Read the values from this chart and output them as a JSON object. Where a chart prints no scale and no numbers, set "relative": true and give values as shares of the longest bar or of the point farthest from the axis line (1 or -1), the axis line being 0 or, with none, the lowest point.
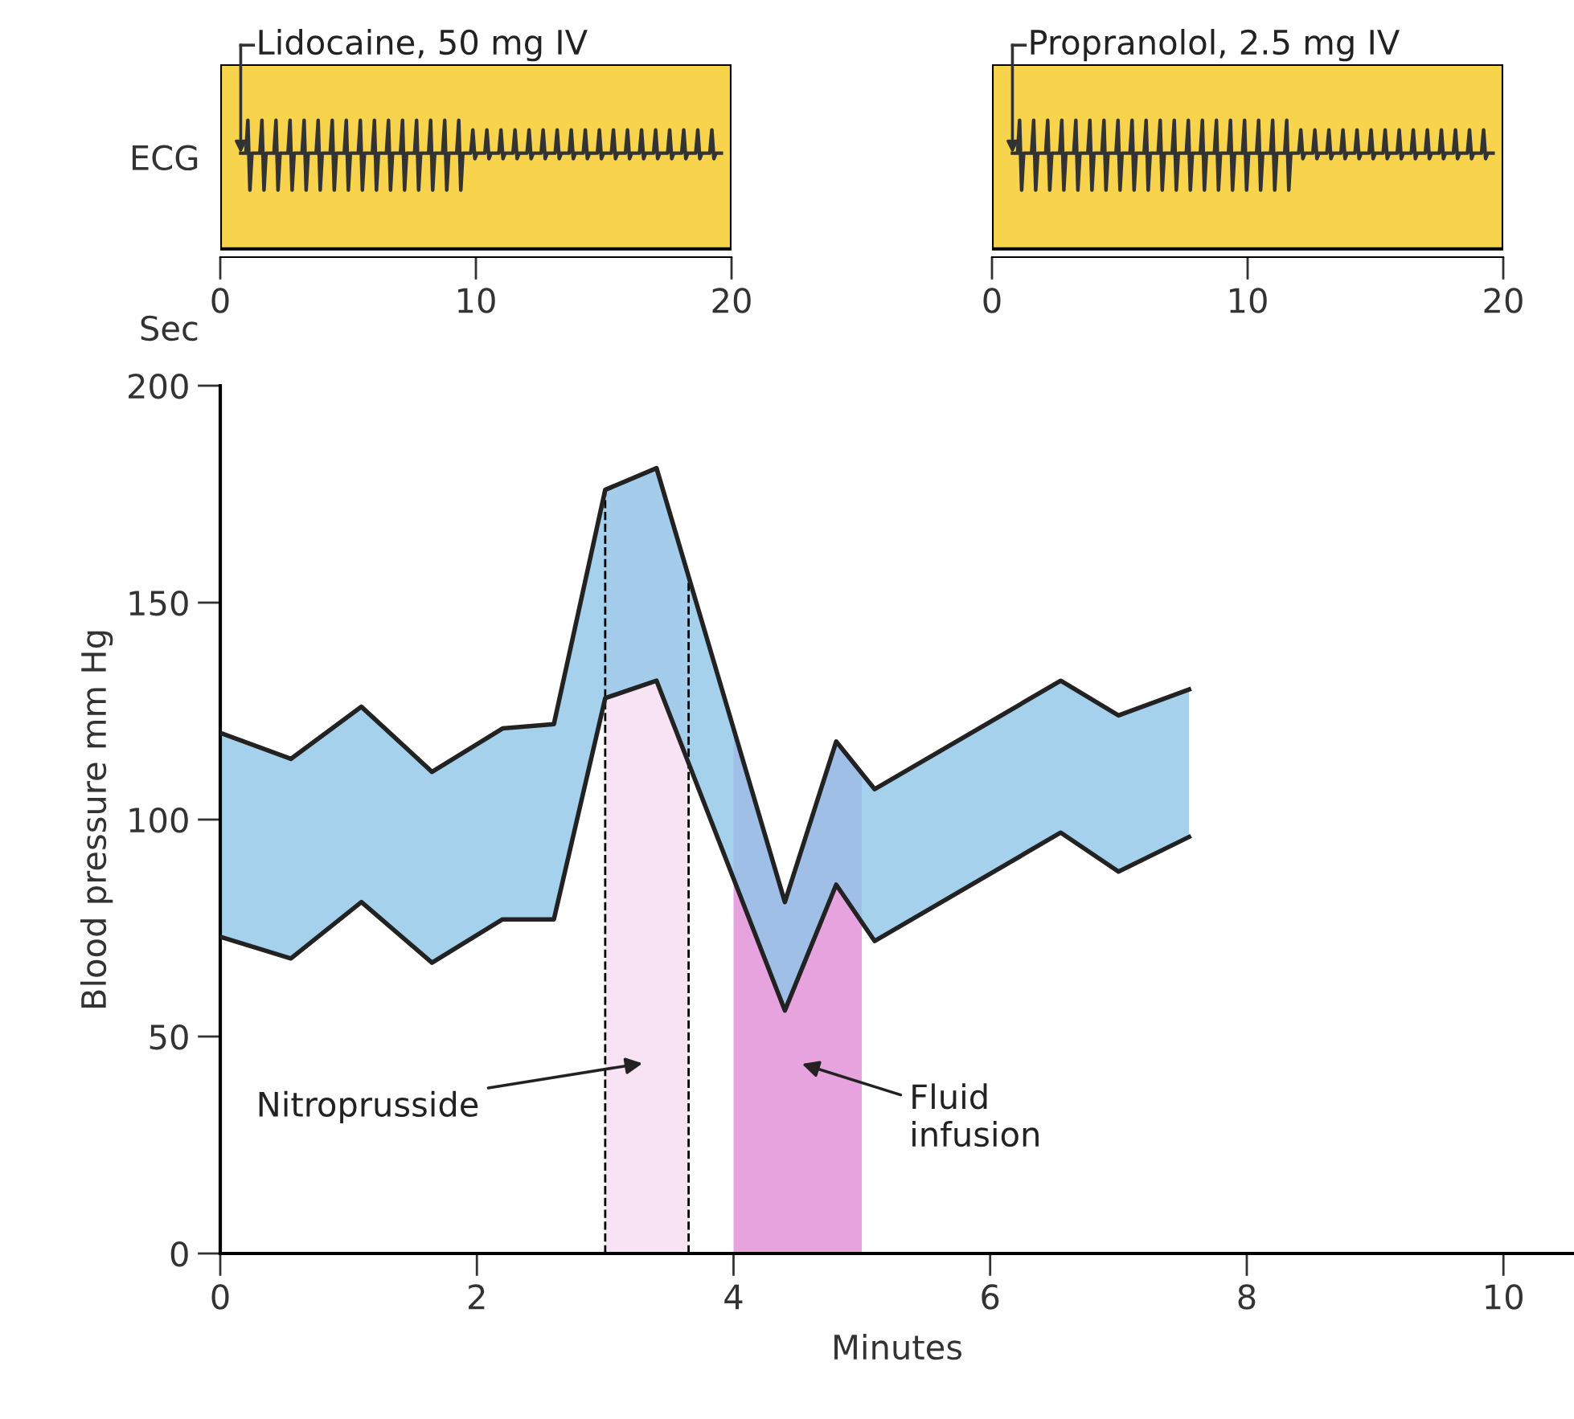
{
  "chart_data": [
    {
      "type": "line",
      "relative": true,
      "xlabel": "Sec",
      "ylabel": "ECG",
      "xlim": [
        0,
        20
      ],
      "xticks": [
        0,
        10,
        20
      ],
      "annotations": [
        {
          "text": "Lidocaine, 50 mg IV",
          "x": 0.8,
          "y": 0.76
        }
      ],
      "series": [
        {
          "color": "#333333",
          "x": [
            0.8,
            1.0,
            1.08,
            1.16,
            1.24,
            1.55,
            1.63,
            1.71,
            1.79,
            2.1,
            2.18,
            2.26,
            2.34,
            2.65,
            2.73,
            2.81,
            2.89,
            3.2,
            3.28,
            3.36,
            3.44,
            3.75,
            3.83,
            3.91,
            3.99,
            4.3,
            4.38,
            4.46,
            4.54,
            4.85,
            4.93,
            5.01,
            5.09,
            5.4,
            5.48,
            5.56,
            5.64,
            5.95,
            6.03,
            6.11,
            6.19,
            6.5,
            6.58,
            6.66,
            6.74,
            7.05,
            7.13,
            7.21,
            7.29,
            7.6,
            7.68,
            7.76,
            7.84,
            8.15,
            8.23,
            8.31,
            8.39,
            8.7,
            8.78,
            8.86,
            8.94,
            9.25,
            9.33,
            9.41,
            9.49,
            9.8,
            9.88,
            9.96,
            10.04,
            10.35,
            10.43,
            10.51,
            10.59,
            10.9,
            10.98,
            11.06,
            11.14,
            11.45,
            11.53,
            11.61,
            11.69,
            12.0,
            12.08,
            12.16,
            12.24,
            12.55,
            12.63,
            12.71,
            12.79,
            13.1,
            13.18,
            13.26,
            13.34,
            13.65,
            13.73,
            13.81,
            13.89,
            14.2,
            14.28,
            14.36,
            14.44,
            14.75,
            14.83,
            14.91,
            14.99,
            15.3,
            15.38,
            15.46,
            15.54,
            15.85,
            15.93,
            16.01,
            16.09,
            16.4,
            16.48,
            16.56,
            16.64,
            16.95,
            17.03,
            17.11,
            17.19,
            17.5,
            17.58,
            17.66,
            17.74,
            18.05,
            18.13,
            18.21,
            18.29,
            18.6,
            18.68,
            18.76,
            18.84,
            19.15,
            19.23,
            19.31,
            19.39,
            19.6
          ],
          "values": [
            0.76,
            0.76,
            1,
            0.49,
            0.76,
            0.76,
            1,
            0.49,
            0.76,
            0.76,
            1,
            0.49,
            0.76,
            0.76,
            1,
            0.49,
            0.76,
            0.76,
            1,
            0.49,
            0.76,
            0.76,
            1,
            0.49,
            0.76,
            0.76,
            1,
            0.49,
            0.76,
            0.76,
            1,
            0.49,
            0.76,
            0.76,
            1,
            0.49,
            0.76,
            0.76,
            1,
            0.49,
            0.76,
            0.76,
            1,
            0.49,
            0.76,
            0.76,
            1,
            0.49,
            0.76,
            0.76,
            1,
            0.49,
            0.76,
            0.76,
            1,
            0.49,
            0.76,
            0.76,
            1,
            0.49,
            0.76,
            0.76,
            1,
            0.49,
            0.76,
            0.76,
            0.93,
            0.72,
            0.76,
            0.76,
            0.93,
            0.72,
            0.76,
            0.76,
            0.93,
            0.72,
            0.76,
            0.76,
            0.93,
            0.72,
            0.76,
            0.76,
            0.93,
            0.72,
            0.76,
            0.76,
            0.93,
            0.72,
            0.76,
            0.76,
            0.93,
            0.72,
            0.76,
            0.76,
            0.93,
            0.72,
            0.76,
            0.76,
            0.93,
            0.72,
            0.76,
            0.76,
            0.93,
            0.72,
            0.76,
            0.76,
            0.93,
            0.72,
            0.76,
            0.76,
            0.93,
            0.72,
            0.76,
            0.76,
            0.93,
            0.72,
            0.76,
            0.76,
            0.93,
            0.72,
            0.76,
            0.76,
            0.93,
            0.72,
            0.76,
            0.76,
            0.93,
            0.72,
            0.76,
            0.76,
            0.93,
            0.72,
            0.76,
            0.76,
            0.93,
            0.72,
            0.76,
            0.76
          ]
        }
      ]
    },
    {
      "type": "line",
      "relative": true,
      "xlim": [
        0,
        20
      ],
      "xticks": [
        0,
        10,
        20
      ],
      "annotations": [
        {
          "text": "Propranolol, 2.5 mg IV",
          "x": 0.8,
          "y": 0.76
        }
      ],
      "series": [
        {
          "color": "#333333",
          "x": [
            0.8,
            1.0,
            1.08,
            1.16,
            1.24,
            1.55,
            1.63,
            1.71,
            1.79,
            2.1,
            2.18,
            2.26,
            2.34,
            2.65,
            2.73,
            2.81,
            2.89,
            3.2,
            3.28,
            3.36,
            3.44,
            3.75,
            3.83,
            3.91,
            3.99,
            4.3,
            4.38,
            4.46,
            4.54,
            4.85,
            4.93,
            5.01,
            5.09,
            5.4,
            5.48,
            5.56,
            5.64,
            5.95,
            6.03,
            6.11,
            6.19,
            6.5,
            6.58,
            6.66,
            6.74,
            7.05,
            7.13,
            7.21,
            7.29,
            7.6,
            7.68,
            7.76,
            7.84,
            8.15,
            8.23,
            8.31,
            8.39,
            8.7,
            8.78,
            8.86,
            8.94,
            9.25,
            9.33,
            9.41,
            9.49,
            9.8,
            9.88,
            9.96,
            10.04,
            10.35,
            10.43,
            10.51,
            10.59,
            10.9,
            10.98,
            11.06,
            11.14,
            11.45,
            11.53,
            11.61,
            11.69,
            12.0,
            12.08,
            12.16,
            12.24,
            12.55,
            12.63,
            12.71,
            12.79,
            13.1,
            13.18,
            13.26,
            13.34,
            13.65,
            13.73,
            13.81,
            13.89,
            14.2,
            14.28,
            14.36,
            14.44,
            14.75,
            14.83,
            14.91,
            14.99,
            15.3,
            15.38,
            15.46,
            15.54,
            15.85,
            15.93,
            16.01,
            16.09,
            16.4,
            16.48,
            16.56,
            16.64,
            16.95,
            17.03,
            17.11,
            17.19,
            17.5,
            17.58,
            17.66,
            17.74,
            18.05,
            18.13,
            18.21,
            18.29,
            18.6,
            18.68,
            18.76,
            18.84,
            19.15,
            19.23,
            19.31,
            19.39,
            19.6
          ],
          "values": [
            0.76,
            0.76,
            1,
            0.49,
            0.76,
            0.76,
            1,
            0.49,
            0.76,
            0.76,
            1,
            0.49,
            0.76,
            0.76,
            1,
            0.49,
            0.76,
            0.76,
            1,
            0.49,
            0.76,
            0.76,
            1,
            0.49,
            0.76,
            0.76,
            1,
            0.49,
            0.76,
            0.76,
            1,
            0.49,
            0.76,
            0.76,
            1,
            0.49,
            0.76,
            0.76,
            1,
            0.49,
            0.76,
            0.76,
            1,
            0.49,
            0.76,
            0.76,
            1,
            0.49,
            0.76,
            0.76,
            1,
            0.49,
            0.76,
            0.76,
            1,
            0.49,
            0.76,
            0.76,
            1,
            0.49,
            0.76,
            0.76,
            1,
            0.49,
            0.76,
            0.76,
            1,
            0.49,
            0.76,
            0.76,
            1,
            0.49,
            0.76,
            0.76,
            1,
            0.49,
            0.76,
            0.76,
            1,
            0.49,
            0.76,
            0.76,
            0.93,
            0.72,
            0.76,
            0.76,
            0.93,
            0.72,
            0.76,
            0.76,
            0.93,
            0.72,
            0.76,
            0.76,
            0.93,
            0.72,
            0.76,
            0.76,
            0.93,
            0.72,
            0.76,
            0.76,
            0.93,
            0.72,
            0.76,
            0.76,
            0.93,
            0.72,
            0.76,
            0.76,
            0.93,
            0.72,
            0.76,
            0.76,
            0.93,
            0.72,
            0.76,
            0.76,
            0.93,
            0.72,
            0.76,
            0.76,
            0.93,
            0.72,
            0.76,
            0.76,
            0.93,
            0.72,
            0.76,
            0.76,
            0.93,
            0.72,
            0.76,
            0.76,
            0.93,
            0.72,
            0.76,
            0.76
          ]
        }
      ]
    },
    {
      "type": "line",
      "xlabel": "Minutes",
      "ylabel": "Blood pressure mm Hg",
      "xlim": [
        0,
        10.55
      ],
      "xticks": [
        0,
        2,
        4,
        6,
        8,
        10
      ],
      "ylim": [
        0,
        200
      ],
      "yticks": [
        0,
        50,
        100,
        150,
        200
      ],
      "grid": false,
      "legend": false,
      "x": [
        0,
        0.55,
        1.1,
        1.65,
        2.2,
        2.6,
        3.0,
        3.4,
        4.4,
        4.8,
        5.1,
        6.55,
        7.0,
        7.55
      ],
      "series": [
        {
          "type": "line",
          "color": "#222222",
          "values": [
            120,
            114,
            126,
            111,
            121,
            122,
            176,
            181,
            81,
            118,
            107,
            132,
            124,
            130
          ],
          "lower": [
            73,
            68,
            81,
            67,
            77,
            77,
            128,
            132,
            56,
            85,
            72,
            97,
            88,
            96
          ],
          "upper": [
            120,
            114,
            126,
            111,
            121,
            122,
            176,
            181,
            81,
            118,
            107,
            132,
            124,
            130
          ]
        },
        {
          "type": "line",
          "color": "#222222",
          "values": [
            73,
            68,
            81,
            67,
            77,
            77,
            128,
            132,
            56,
            85,
            72,
            97,
            88,
            96
          ]
        }
      ],
      "bands": [
        {
          "axis": "x",
          "from": 3.0,
          "to": 3.65,
          "color": "#f7e3f3",
          "label": "Nitroprusside"
        },
        {
          "axis": "x",
          "from": 4.0,
          "to": 5.0,
          "color": "#e6a3de",
          "label": "Fluid\ninfusion"
        }
      ],
      "ref_lines": [
        {
          "axis": "x",
          "value": 3.0,
          "color": "#000000",
          "line_style": "dashed"
        },
        {
          "axis": "x",
          "value": 3.65,
          "color": "#000000",
          "line_style": "dashed"
        }
      ]
    }
  ]
}
